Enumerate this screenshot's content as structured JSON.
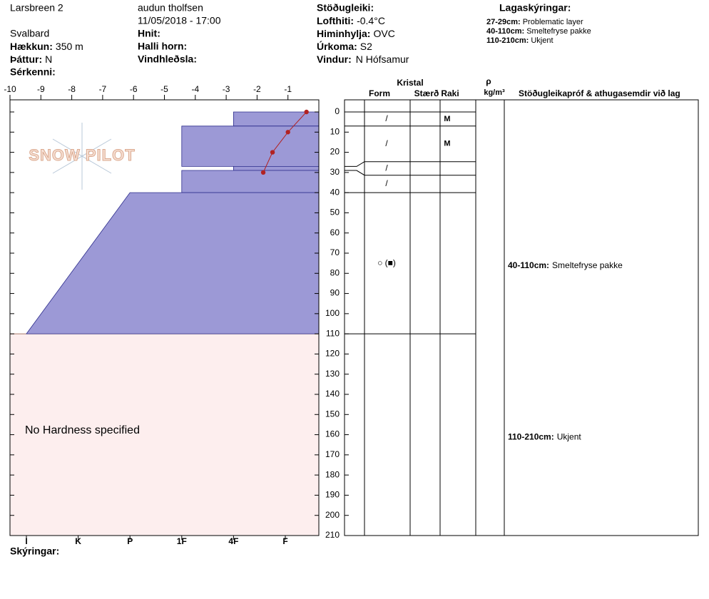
{
  "header": {
    "site": "Larsbreen 2",
    "region": "Svalbard",
    "observer": "audun tholfsen",
    "datetime": "11/05/2018 - 17:00",
    "fields": [
      {
        "label": "Hækkun:",
        "value": "350 m"
      },
      {
        "label": "Þáttur:",
        "value": "N"
      },
      {
        "label": "Sérkenni:"
      },
      {
        "label": "Hnit:"
      },
      {
        "label": "Halli horn:"
      },
      {
        "label": "Vindhleðsla:"
      },
      {
        "label": "Stöðugleiki:"
      },
      {
        "label": "Lofthiti:",
        "value": "-0.4°C"
      },
      {
        "label": "Himinhylja:",
        "value": "OVC"
      },
      {
        "label": "Úrkoma:",
        "value": "S2"
      },
      {
        "label": "Vindur:",
        "value": "N Hófsamur"
      }
    ],
    "legend_title": "Lagaskýringar:",
    "legend": [
      {
        "label": "27-29cm:",
        "text": "Problematic layer"
      },
      {
        "label": "40-110cm:",
        "text": "Smeltefryse pakke"
      },
      {
        "label": "110-210cm:",
        "text": "Ukjent"
      }
    ],
    "footer": "Skýringar:"
  },
  "chart_data": {
    "type": "snow-profile",
    "logo": "SNOW PILOT",
    "xlim": [
      -10,
      0
    ],
    "xticks": [
      -10,
      -9,
      -8,
      -7,
      -6,
      -5,
      -4,
      -3,
      -2,
      -1
    ],
    "ylim": [
      0,
      210
    ],
    "yticks": [
      0,
      10,
      20,
      30,
      40,
      50,
      60,
      70,
      80,
      90,
      100,
      110,
      120,
      130,
      140,
      150,
      160,
      170,
      180,
      190,
      200,
      210
    ],
    "hardness_scale": [
      "I",
      "K",
      "P",
      "1F",
      "4F",
      "F"
    ],
    "layer_color": "#9c99d6",
    "temperature": {
      "x": [
        -0.4,
        -1,
        -1.5,
        -1.8
      ],
      "y": [
        0,
        10,
        20,
        30
      ],
      "color": "#b22222"
    },
    "layers": [
      {
        "top": 0,
        "bottom": 7,
        "hardness": "4F",
        "form": "/",
        "moisture": "M"
      },
      {
        "top": 7,
        "bottom": 27,
        "hardness": "1F",
        "form": "/",
        "moisture": "M"
      },
      {
        "top": 27,
        "bottom": 29,
        "hardness": "4F",
        "form": "/"
      },
      {
        "top": 29,
        "bottom": 40,
        "hardness": "1F",
        "form": "/"
      },
      {
        "top": 40,
        "bottom": 110,
        "hardness": "P",
        "hardness_bottom": "I",
        "form": "○ (■)"
      }
    ],
    "no_hardness": {
      "top": 110,
      "bottom": 210,
      "text": "No Hardness specified"
    },
    "columns": {
      "group": "Kristal",
      "form": "Form",
      "size": "Stærð",
      "moisture": "Raki",
      "density_symbol": "ρ",
      "density_unit": "kg/m³",
      "comments": "Stöðugleikapróf & athugasemdir við lag"
    },
    "comments": [
      {
        "top": 40,
        "bottom": 110,
        "label": "40-110cm:",
        "text": "Smeltefryse pakke"
      },
      {
        "top": 110,
        "bottom": 210,
        "label": "110-210cm:",
        "text": "Ukjent"
      }
    ]
  }
}
